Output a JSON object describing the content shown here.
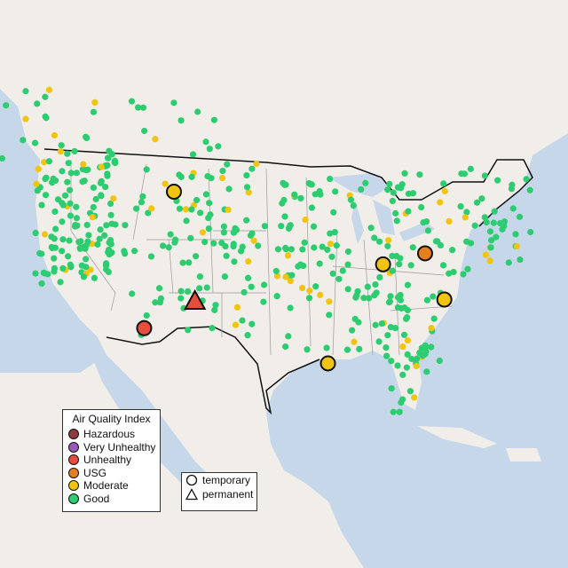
{
  "map": {
    "colors": {
      "water": "#c5d7e8",
      "land": "#f1eeea",
      "state_border": "#9a9a9a",
      "country_border": "#111111"
    }
  },
  "legend_aqi": {
    "title": "Air Quality Index",
    "items": [
      {
        "label": "Hazardous",
        "color": "#8e3b3b"
      },
      {
        "label": "Very Unhealthy",
        "color": "#9b59b6"
      },
      {
        "label": "Unhealthy",
        "color": "#e74c3c"
      },
      {
        "label": "USG",
        "color": "#e67e22"
      },
      {
        "label": "Moderate",
        "color": "#f1c40f"
      },
      {
        "label": "Good",
        "color": "#2ecc71"
      }
    ]
  },
  "legend_type": {
    "items": [
      {
        "label": "temporary",
        "icon": "circle-icon"
      },
      {
        "label": "permanent",
        "icon": "triangle-icon"
      }
    ]
  },
  "highlighted_monitors": [
    {
      "lat": 45.1,
      "lon": -108.0,
      "category": "Moderate",
      "type": "temporary"
    },
    {
      "lat": 35.1,
      "lon": -105.6,
      "category": "Unhealthy",
      "type": "permanent"
    },
    {
      "lat": 32.7,
      "lon": -111.4,
      "category": "Unhealthy",
      "type": "temporary"
    },
    {
      "lat": 39.5,
      "lon": -79.3,
      "category": "USG",
      "type": "temporary"
    },
    {
      "lat": 38.5,
      "lon": -84.1,
      "category": "Moderate",
      "type": "temporary"
    },
    {
      "lat": 35.3,
      "lon": -77.1,
      "category": "Moderate",
      "type": "temporary"
    },
    {
      "lat": 29.5,
      "lon": -90.4,
      "category": "Moderate",
      "type": "temporary"
    }
  ]
}
